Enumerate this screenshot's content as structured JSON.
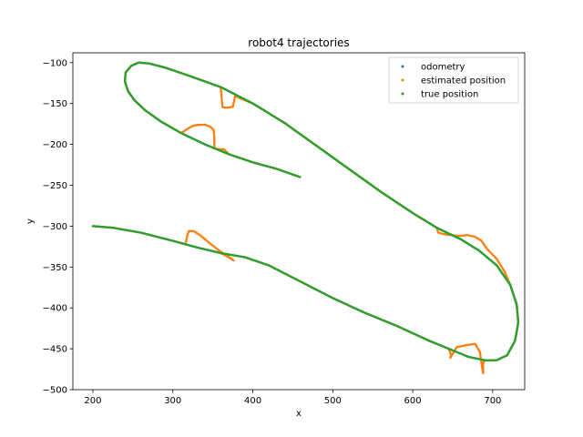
{
  "chart_data": {
    "type": "scatter",
    "title": "robot4 trajectories",
    "xlabel": "x",
    "ylabel": "y",
    "xlim": [
      175,
      740
    ],
    "ylim": [
      -500,
      -88
    ],
    "xticks": [
      200,
      300,
      400,
      500,
      600,
      700
    ],
    "yticks": [
      -100,
      -150,
      -200,
      -250,
      -300,
      -350,
      -400,
      -450,
      -500
    ],
    "xtick_labels": [
      "200",
      "300",
      "400",
      "500",
      "600",
      "700"
    ],
    "ytick_labels": [
      "−100",
      "−150",
      "−200",
      "−250",
      "−300",
      "−350",
      "−400",
      "−450",
      "−500"
    ],
    "grid": false,
    "legend_position": "top-right",
    "series": [
      {
        "name": "odometry",
        "color": "#1f77b4",
        "points": [
          [
            200,
            -300
          ],
          [
            225,
            -302
          ],
          [
            260,
            -308
          ],
          [
            300,
            -318
          ],
          [
            330,
            -326
          ],
          [
            360,
            -333
          ],
          [
            390,
            -338
          ],
          [
            420,
            -348
          ],
          [
            460,
            -368
          ],
          [
            500,
            -388
          ],
          [
            540,
            -406
          ],
          [
            580,
            -422
          ],
          [
            620,
            -440
          ],
          [
            650,
            -452
          ],
          [
            670,
            -460
          ],
          [
            690,
            -464
          ],
          [
            705,
            -464
          ],
          [
            718,
            -458
          ],
          [
            728,
            -440
          ],
          [
            732,
            -418
          ],
          [
            730,
            -396
          ],
          [
            722,
            -372
          ],
          [
            705,
            -348
          ],
          [
            683,
            -330
          ],
          [
            660,
            -316
          ],
          [
            630,
            -302
          ],
          [
            600,
            -284
          ],
          [
            560,
            -258
          ],
          [
            520,
            -230
          ],
          [
            480,
            -202
          ],
          [
            440,
            -174
          ],
          [
            400,
            -150
          ],
          [
            360,
            -130
          ],
          [
            320,
            -116
          ],
          [
            290,
            -106
          ],
          [
            270,
            -101
          ],
          [
            257,
            -100
          ],
          [
            248,
            -104
          ],
          [
            241,
            -112
          ],
          [
            240,
            -123
          ],
          [
            244,
            -135
          ],
          [
            252,
            -146
          ],
          [
            265,
            -158
          ],
          [
            285,
            -172
          ],
          [
            310,
            -186
          ],
          [
            340,
            -200
          ],
          [
            370,
            -212
          ],
          [
            400,
            -222
          ],
          [
            430,
            -230
          ],
          [
            459,
            -240
          ]
        ]
      },
      {
        "name": "estimated position",
        "color": "#ff7f0e",
        "points": [
          [
            200,
            -300
          ],
          [
            225,
            -302
          ],
          [
            260,
            -308
          ],
          [
            300,
            -318
          ],
          [
            316,
            -322
          ],
          [
            318,
            -312
          ],
          [
            320,
            -306
          ],
          [
            326,
            -306
          ],
          [
            334,
            -311
          ],
          [
            345,
            -320
          ],
          [
            358,
            -330
          ],
          [
            370,
            -338
          ],
          [
            376,
            -342
          ],
          [
            372,
            -339
          ],
          [
            360,
            -333
          ],
          [
            390,
            -338
          ],
          [
            420,
            -348
          ],
          [
            460,
            -368
          ],
          [
            500,
            -388
          ],
          [
            540,
            -406
          ],
          [
            580,
            -422
          ],
          [
            620,
            -440
          ],
          [
            645,
            -450
          ],
          [
            648,
            -458
          ],
          [
            647,
            -461
          ],
          [
            650,
            -456
          ],
          [
            655,
            -448
          ],
          [
            665,
            -446
          ],
          [
            678,
            -444
          ],
          [
            684,
            -454
          ],
          [
            686,
            -468
          ],
          [
            688,
            -480
          ],
          [
            688,
            -468
          ],
          [
            690,
            -464
          ],
          [
            705,
            -464
          ],
          [
            718,
            -458
          ],
          [
            728,
            -440
          ],
          [
            732,
            -418
          ],
          [
            730,
            -396
          ],
          [
            722,
            -372
          ],
          [
            715,
            -356
          ],
          [
            705,
            -340
          ],
          [
            693,
            -328
          ],
          [
            686,
            -318
          ],
          [
            678,
            -313
          ],
          [
            668,
            -311
          ],
          [
            658,
            -312
          ],
          [
            648,
            -311
          ],
          [
            640,
            -310
          ],
          [
            632,
            -308
          ],
          [
            630,
            -302
          ],
          [
            600,
            -284
          ],
          [
            560,
            -258
          ],
          [
            520,
            -230
          ],
          [
            480,
            -202
          ],
          [
            440,
            -174
          ],
          [
            400,
            -150
          ],
          [
            378,
            -141
          ],
          [
            375,
            -154
          ],
          [
            370,
            -155
          ],
          [
            364,
            -155
          ],
          [
            362,
            -154
          ],
          [
            360,
            -130
          ],
          [
            320,
            -116
          ],
          [
            290,
            -106
          ],
          [
            270,
            -101
          ],
          [
            257,
            -100
          ],
          [
            248,
            -104
          ],
          [
            241,
            -112
          ],
          [
            240,
            -123
          ],
          [
            244,
            -135
          ],
          [
            252,
            -146
          ],
          [
            265,
            -158
          ],
          [
            285,
            -172
          ],
          [
            310,
            -186
          ],
          [
            314,
            -184
          ],
          [
            320,
            -180
          ],
          [
            326,
            -177
          ],
          [
            334,
            -176
          ],
          [
            340,
            -176
          ],
          [
            346,
            -178
          ],
          [
            351,
            -182
          ],
          [
            352,
            -194
          ],
          [
            352,
            -205
          ],
          [
            358,
            -206
          ],
          [
            364,
            -206
          ],
          [
            370,
            -212
          ],
          [
            400,
            -222
          ],
          [
            430,
            -230
          ],
          [
            459,
            -240
          ]
        ]
      },
      {
        "name": "true position",
        "color": "#2ca02c",
        "points": [
          [
            200,
            -300
          ],
          [
            225,
            -302
          ],
          [
            260,
            -308
          ],
          [
            300,
            -318
          ],
          [
            330,
            -326
          ],
          [
            360,
            -333
          ],
          [
            390,
            -338
          ],
          [
            420,
            -348
          ],
          [
            460,
            -368
          ],
          [
            500,
            -388
          ],
          [
            540,
            -406
          ],
          [
            580,
            -422
          ],
          [
            620,
            -440
          ],
          [
            650,
            -452
          ],
          [
            670,
            -460
          ],
          [
            690,
            -464
          ],
          [
            705,
            -464
          ],
          [
            718,
            -458
          ],
          [
            728,
            -440
          ],
          [
            732,
            -418
          ],
          [
            730,
            -396
          ],
          [
            722,
            -372
          ],
          [
            705,
            -348
          ],
          [
            683,
            -330
          ],
          [
            660,
            -316
          ],
          [
            630,
            -302
          ],
          [
            600,
            -284
          ],
          [
            560,
            -258
          ],
          [
            520,
            -230
          ],
          [
            480,
            -202
          ],
          [
            440,
            -174
          ],
          [
            400,
            -150
          ],
          [
            360,
            -130
          ],
          [
            320,
            -116
          ],
          [
            290,
            -106
          ],
          [
            270,
            -101
          ],
          [
            257,
            -100
          ],
          [
            248,
            -104
          ],
          [
            241,
            -112
          ],
          [
            240,
            -123
          ],
          [
            244,
            -135
          ],
          [
            252,
            -146
          ],
          [
            265,
            -158
          ],
          [
            285,
            -172
          ],
          [
            310,
            -186
          ],
          [
            340,
            -200
          ],
          [
            370,
            -212
          ],
          [
            400,
            -222
          ],
          [
            430,
            -230
          ],
          [
            459,
            -240
          ]
        ]
      }
    ]
  }
}
